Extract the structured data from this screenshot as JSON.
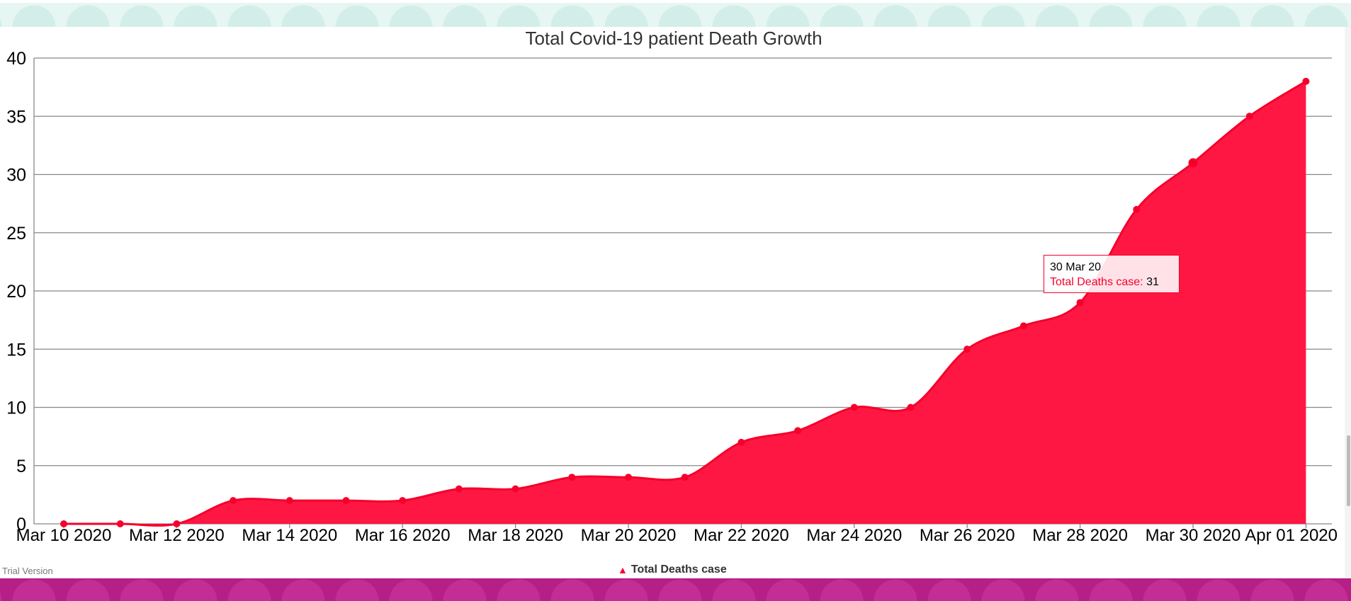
{
  "colors": {
    "series": "#ff1744",
    "series_line": "#f5002b",
    "grid": "#888888",
    "text": "#333333"
  },
  "trial_text": "Trial Version",
  "tooltip": {
    "date": "30 Mar 20",
    "series_label": "Total Deaths case:",
    "value": "31"
  },
  "chart_data": {
    "type": "area",
    "title": "Total Covid-19 patient Death Growth",
    "x": [
      "2020-03-10",
      "2020-03-11",
      "2020-03-12",
      "2020-03-13",
      "2020-03-14",
      "2020-03-15",
      "2020-03-16",
      "2020-03-17",
      "2020-03-18",
      "2020-03-19",
      "2020-03-20",
      "2020-03-21",
      "2020-03-22",
      "2020-03-23",
      "2020-03-24",
      "2020-03-25",
      "2020-03-26",
      "2020-03-27",
      "2020-03-28",
      "2020-03-29",
      "2020-03-30",
      "2020-03-31",
      "2020-04-01"
    ],
    "series": [
      {
        "name": "Total Deaths case",
        "values": [
          0,
          0,
          0,
          2,
          2,
          2,
          2,
          3,
          3,
          4,
          4,
          4,
          7,
          8,
          10,
          10,
          15,
          17,
          19,
          27,
          31,
          35,
          38
        ]
      }
    ],
    "ylim": [
      0,
      40
    ],
    "yticks": [
      "0",
      "5",
      "10",
      "15",
      "20",
      "25",
      "30",
      "35",
      "40"
    ],
    "xticks": [
      {
        "value": "2020-03-10",
        "label": "Mar 10 2020"
      },
      {
        "value": "2020-03-12",
        "label": "Mar 12 2020"
      },
      {
        "value": "2020-03-14",
        "label": "Mar 14 2020"
      },
      {
        "value": "2020-03-16",
        "label": "Mar 16 2020"
      },
      {
        "value": "2020-03-18",
        "label": "Mar 18 2020"
      },
      {
        "value": "2020-03-20",
        "label": "Mar 20 2020"
      },
      {
        "value": "2020-03-22",
        "label": "Mar 22 2020"
      },
      {
        "value": "2020-03-24",
        "label": "Mar 24 2020"
      },
      {
        "value": "2020-03-26",
        "label": "Mar 26 2020"
      },
      {
        "value": "2020-03-28",
        "label": "Mar 28 2020"
      },
      {
        "value": "2020-03-30",
        "label": "Mar 30 2020"
      },
      {
        "value": "2020-04-01",
        "label": "Apr 01 2020"
      }
    ],
    "legend": "bottom-center",
    "grid": true
  }
}
